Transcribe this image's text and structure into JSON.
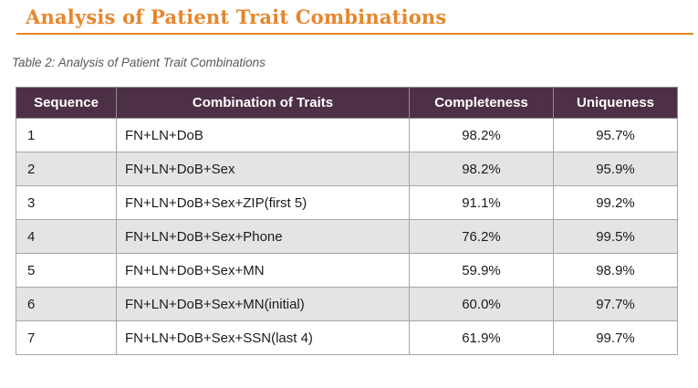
{
  "page": {
    "title": "Analysis of Patient Trait Combinations",
    "caption": "Table 2: Analysis of Patient Trait Combinations"
  },
  "table": {
    "headers": [
      "Sequence",
      "Combination of Traits",
      "Completeness",
      "Uniqueness"
    ],
    "rows": [
      {
        "sequence": "1",
        "traits": "FN+LN+DoB",
        "completeness": "98.2%",
        "uniqueness": "95.7%"
      },
      {
        "sequence": "2",
        "traits": "FN+LN+DoB+Sex",
        "completeness": "98.2%",
        "uniqueness": "95.9%"
      },
      {
        "sequence": "3",
        "traits": "FN+LN+DoB+Sex+ZIP(first 5)",
        "completeness": "91.1%",
        "uniqueness": "99.2%"
      },
      {
        "sequence": "4",
        "traits": "FN+LN+DoB+Sex+Phone",
        "completeness": "76.2%",
        "uniqueness": "99.5%"
      },
      {
        "sequence": "5",
        "traits": "FN+LN+DoB+Sex+MN",
        "completeness": "59.9%",
        "uniqueness": "98.9%"
      },
      {
        "sequence": "6",
        "traits": "FN+LN+DoB+Sex+MN(initial)",
        "completeness": "60.0%",
        "uniqueness": "97.7%"
      },
      {
        "sequence": "7",
        "traits": "FN+LN+DoB+Sex+SSN(last 4)",
        "completeness": "61.9%",
        "uniqueness": "99.7%"
      }
    ]
  },
  "colors": {
    "title_orange": "#e7862c",
    "rule_orange": "#e7861e",
    "header_bg": "#4d3045",
    "header_text": "#ffffff",
    "alt_row_bg": "#e4e4e4",
    "border_gray": "#a6a6a6",
    "caption_gray": "#595959",
    "body_text": "#1c1c1c"
  }
}
